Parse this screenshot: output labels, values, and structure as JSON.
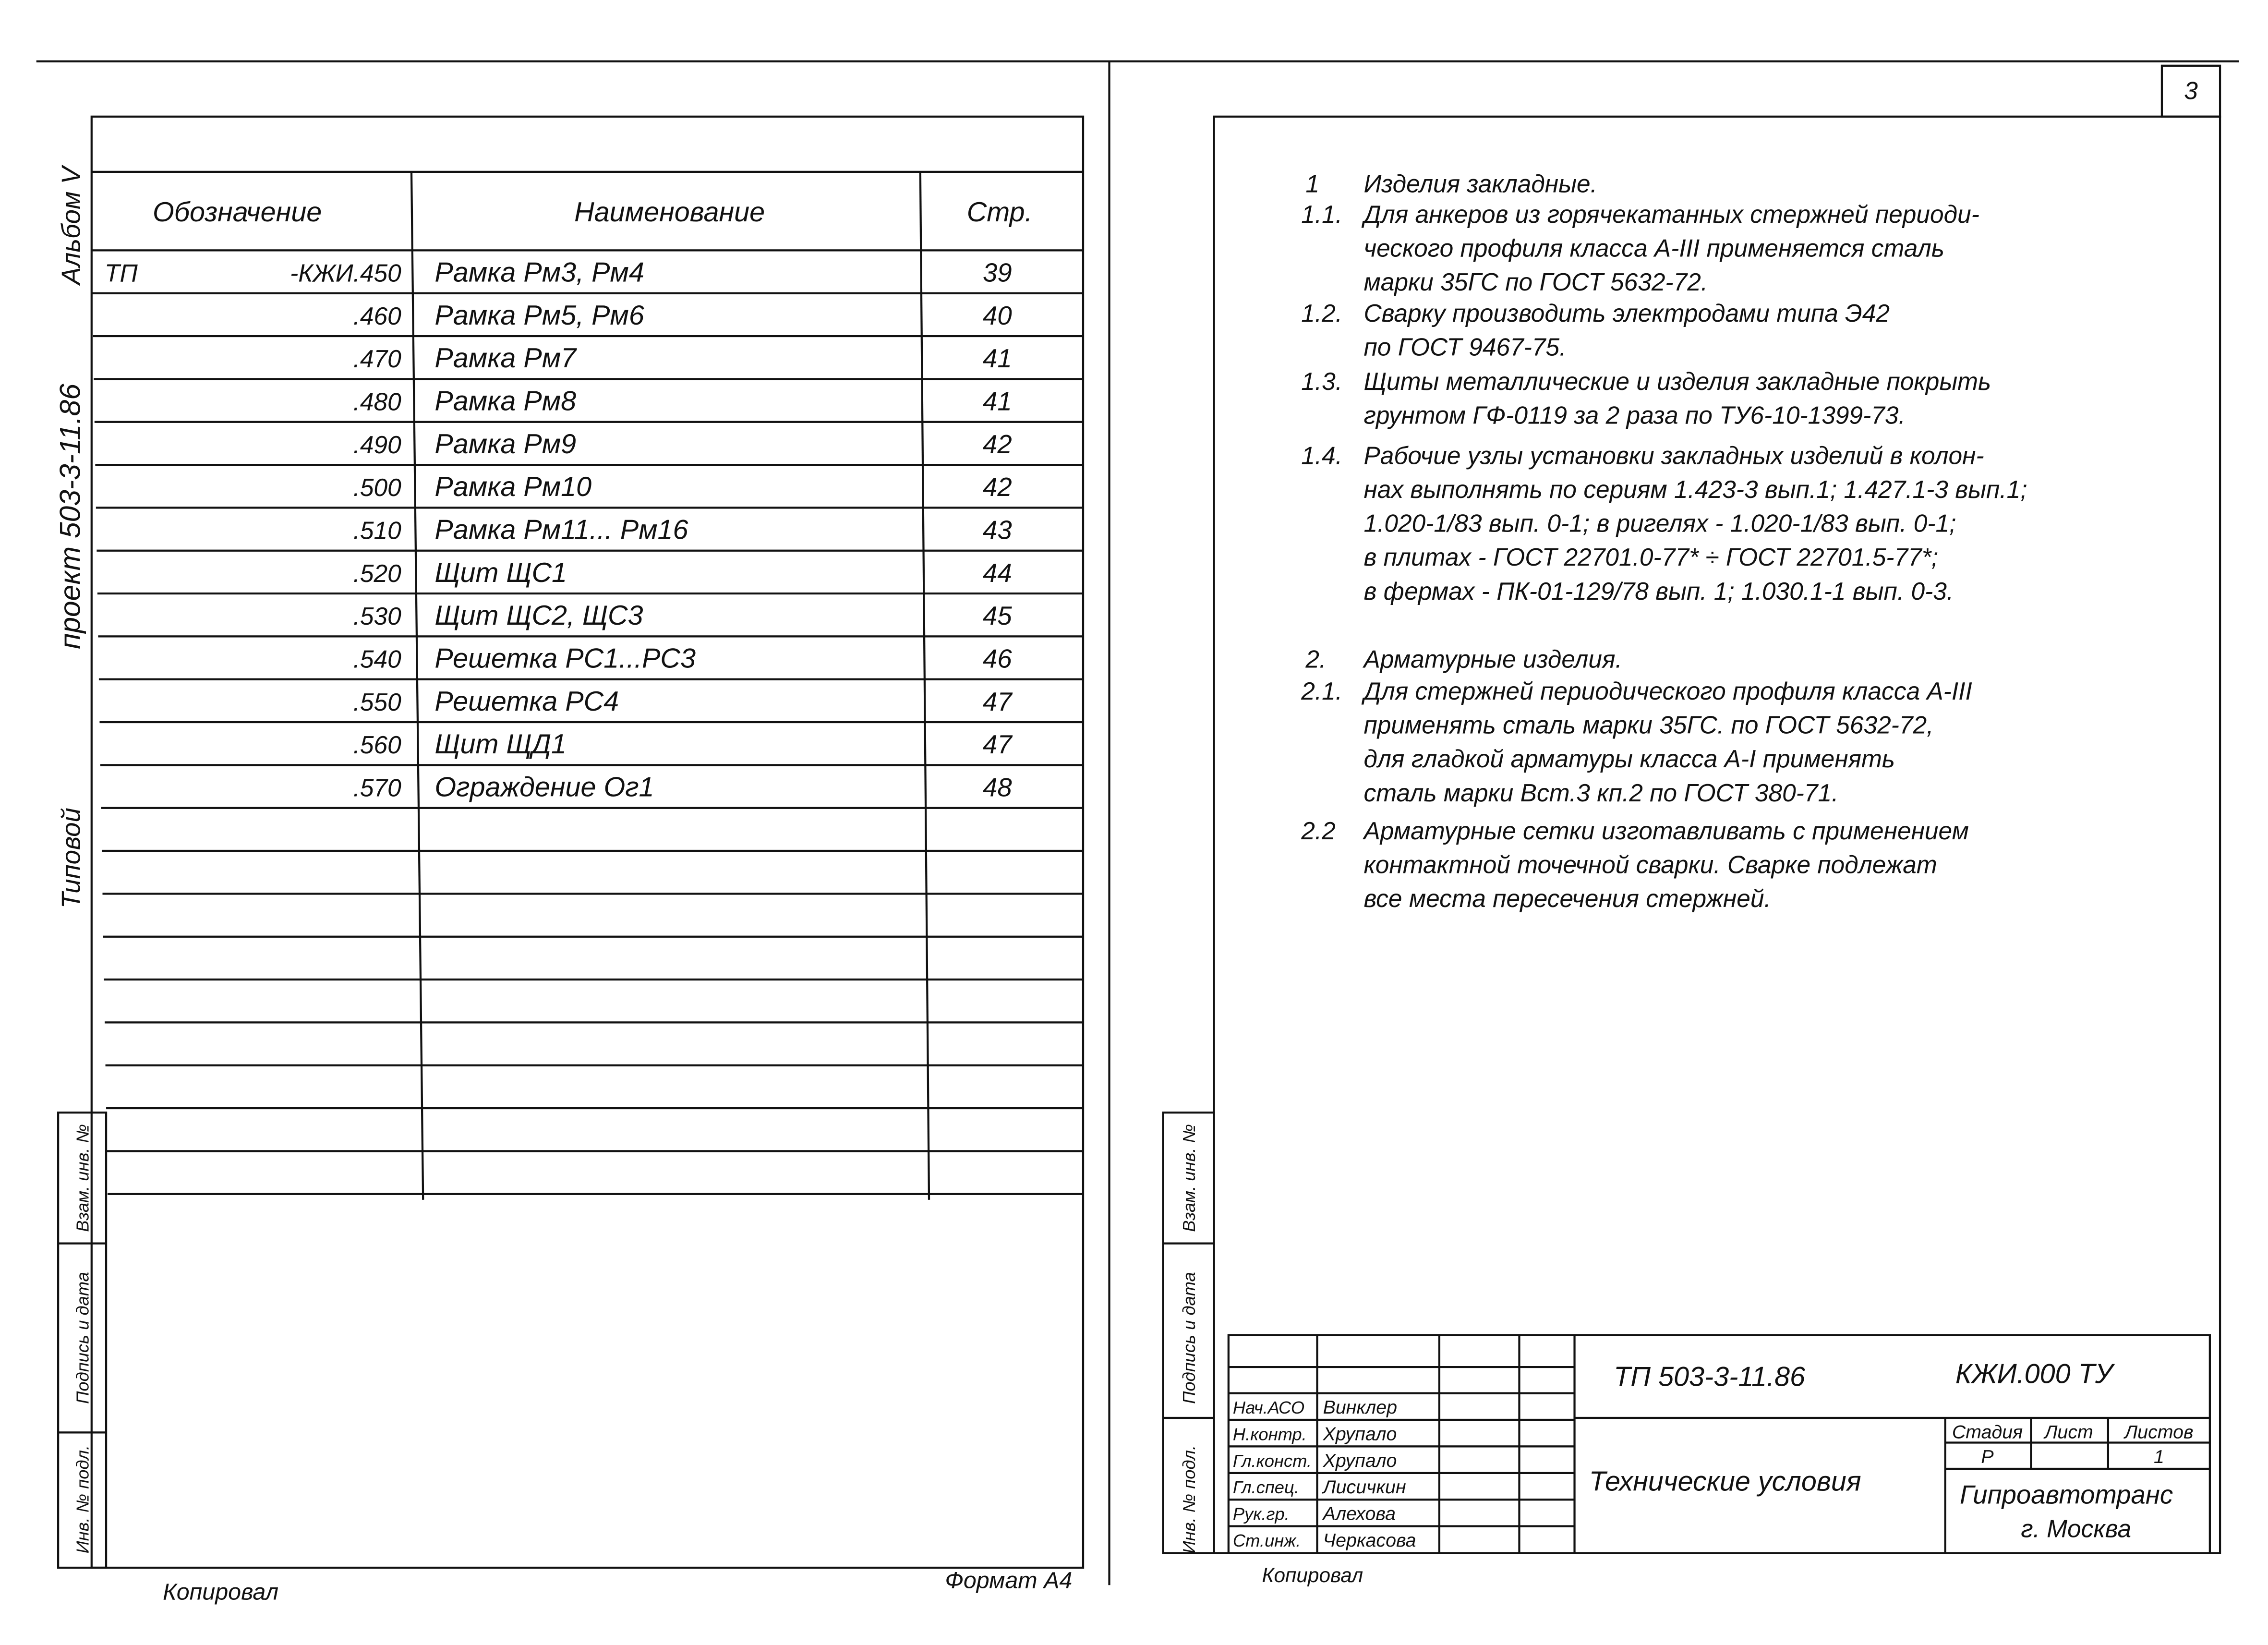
{
  "sheet_number": "3",
  "left": {
    "side_labels": [
      "Альбом V",
      "проект 503-3-11.86",
      "Типовой"
    ],
    "stamp_labels": [
      "Взам. инв. №",
      "Подпись и дата",
      "Инв. № подл."
    ],
    "table": {
      "headers": [
        "Обозначение",
        "Наименование",
        "Стр."
      ],
      "designation_prefix": "ТП",
      "rows": [
        [
          "-КЖИ.450",
          "Рамка Рм3, Рм4",
          "39"
        ],
        [
          ".460",
          "Рамка Рм5, Рм6",
          "40"
        ],
        [
          ".470",
          "Рамка Рм7",
          "41"
        ],
        [
          ".480",
          "Рамка Рм8",
          "41"
        ],
        [
          ".490",
          "Рамка Рм9",
          "42"
        ],
        [
          ".500",
          "Рамка Рм10",
          "42"
        ],
        [
          ".510",
          "Рамка Рм11... Рм16",
          "43"
        ],
        [
          ".520",
          "Щит ЩС1",
          "44"
        ],
        [
          ".530",
          "Щит ЩС2, ЩС3",
          "45"
        ],
        [
          ".540",
          "Решетка РС1...РС3",
          "46"
        ],
        [
          ".550",
          "Решетка РС4",
          "47"
        ],
        [
          ".560",
          "Щит ЩД1",
          "47"
        ],
        [
          ".570",
          "Ограждение Ог1",
          "48"
        ]
      ]
    },
    "footer": [
      "Копировал",
      "Формат А4"
    ]
  },
  "right": {
    "notes": [
      {
        "number": "1",
        "lines": [
          "Изделия закладные."
        ]
      },
      {
        "number": "1.1.",
        "lines": [
          "Для анкеров из горячекатанных стержней периоди-",
          "ческого профиля класса А-III применяется сталь",
          "марки 35ГС по ГОСТ 5632-72."
        ]
      },
      {
        "number": "1.2.",
        "lines": [
          "Сварку производить электродами типа Э42",
          "по ГОСТ 9467-75."
        ]
      },
      {
        "number": "1.3.",
        "lines": [
          "Щиты металлические и изделия закладные покрыть",
          "грунтом ГФ-0119 за 2 раза по ТУ6-10-1399-73."
        ]
      },
      {
        "number": "1.4.",
        "lines": [
          "Рабочие узлы установки закладных изделий в колон-",
          "нах выполнять по сериям 1.423-3 вып.1; 1.427.1-3 вып.1;",
          "1.020-1/83 вып. 0-1; в ригелях - 1.020-1/83 вып. 0-1;",
          "в плитах - ГОСТ 22701.0-77* ÷ ГОСТ 22701.5-77*;",
          "в фермах - ПК-01-129/78 вып. 1; 1.030.1-1 вып. 0-3."
        ]
      },
      {
        "number": "2.",
        "lines": [
          "Арматурные изделия."
        ]
      },
      {
        "number": "2.1.",
        "lines": [
          "Для стержней периодического профиля класса А-III",
          "применять сталь марки 35ГС. по ГОСТ 5632-72,",
          "для гладкой арматуры класса А-I применять",
          "сталь марки Вст.3 кп.2 по ГОСТ 380-71."
        ]
      },
      {
        "number": "2.2",
        "lines": [
          "Арматурные сетки изготавливать с применением",
          "контактной точечной сварки. Сварке подлежат",
          "все места пересечения стержней."
        ]
      }
    ],
    "stamp_labels": [
      "Взам. инв. №",
      "Подпись и дата",
      "Инв. № подл."
    ],
    "title_block": {
      "designation": "ТП 503-3-11.86",
      "code": "КЖИ.000 ТУ",
      "title": "Технические условия",
      "stage_headers": [
        "Стадия",
        "Лист",
        "Листов"
      ],
      "stage": "Р",
      "sheets": "1",
      "organization": "Гипроавтотранс",
      "city": "г. Москва",
      "signatures": [
        [
          "Нач.АСО",
          "Винклер"
        ],
        [
          "Н.контр.",
          "Хрупало"
        ],
        [
          "Гл.конст.",
          "Хрупало"
        ],
        [
          "Гл.спец.",
          "Лисичкин"
        ],
        [
          "Рук.гр.",
          "Алехова"
        ],
        [
          "Ст.инж.",
          "Черкасова"
        ]
      ]
    },
    "footer": "Копировал"
  }
}
